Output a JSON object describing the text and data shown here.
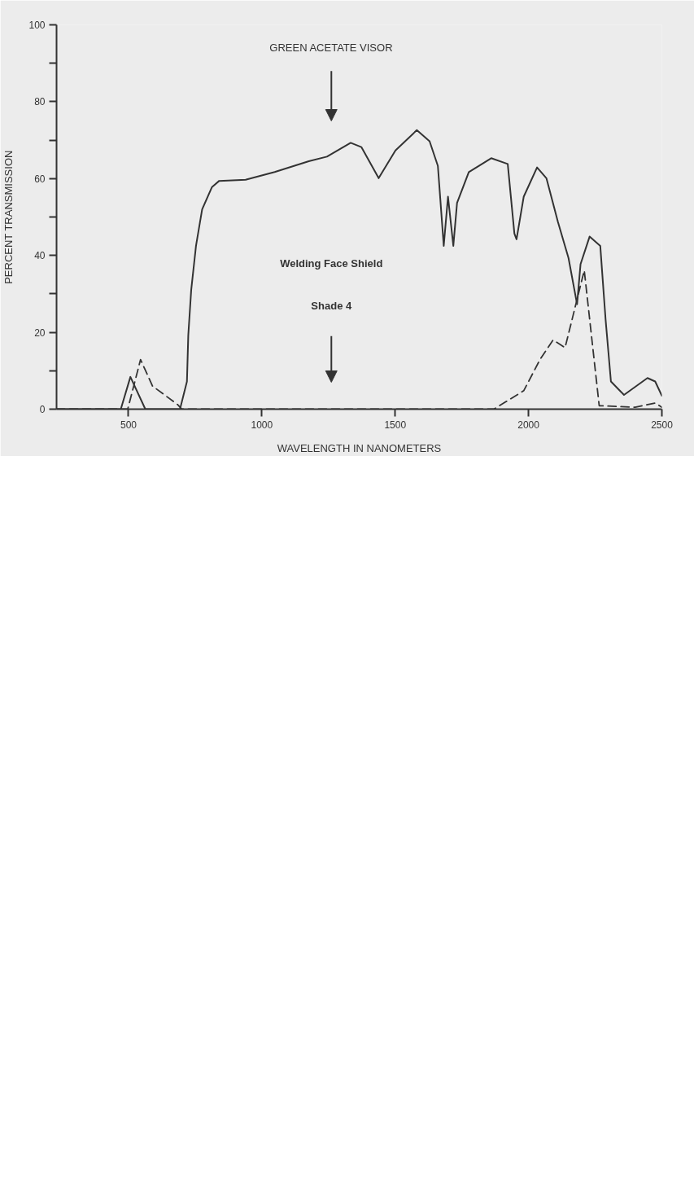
{
  "chart_data": {
    "type": "line",
    "xlabel": "WAVELENGTH IN NANOMETERS",
    "ylabel": "PERCENT TRANSMISSION",
    "xlim": [
      230,
      2500
    ],
    "xticks": [
      500,
      1000,
      1500,
      2000,
      2500
    ],
    "ylim": [
      0,
      100
    ],
    "yticks": [
      0,
      {
        "value": 10,
        "label": null
      },
      20,
      {
        "value": 30,
        "label": null
      },
      40,
      {
        "value": 50,
        "label": null
      },
      60,
      {
        "value": 70,
        "label": null
      },
      80,
      {
        "value": 90,
        "label": null
      },
      100
    ],
    "grid": false,
    "series": [
      {
        "color": "#333333",
        "line_style": "solid",
        "x": [
          230,
          471,
          507,
          563,
          693,
          719,
          724,
          735,
          753,
          776,
          813,
          840,
          939,
          1048,
          1176,
          1244,
          1333,
          1373,
          1438,
          1501,
          1581,
          1629,
          1660,
          1682,
          1698,
          1718,
          1732,
          1776,
          1860,
          1922,
          1947,
          1955,
          1982,
          2032,
          2067,
          2110,
          2150,
          2182,
          2195,
          2229,
          2269,
          2289,
          2309,
          2358,
          2446,
          2475,
          2500
        ],
        "values": [
          0,
          0,
          8.4,
          0,
          0,
          7.2,
          19.2,
          31,
          42.5,
          52,
          57.8,
          59.4,
          59.7,
          61.7,
          64.5,
          65.7,
          69.3,
          68.2,
          60.1,
          67.3,
          72.6,
          69.7,
          63.3,
          42.5,
          55.3,
          42.5,
          53.7,
          61.7,
          65.3,
          63.8,
          45.7,
          44.2,
          55.3,
          62.9,
          60.1,
          48.8,
          39.3,
          27.3,
          37.7,
          44.9,
          42.5,
          23.3,
          7.2,
          3.7,
          8.1,
          7.2,
          3.5
        ]
      },
      {
        "color": "#333333",
        "line_style": "dashed",
        "x": [
          230,
          470,
          497,
          545,
          590,
          684,
          700,
          1870,
          1982,
          2043,
          2092,
          2137,
          2209,
          2265,
          2400,
          2475,
          2500
        ],
        "values": [
          0,
          0,
          0,
          12.9,
          6.0,
          1.2,
          0,
          0,
          4.8,
          12.9,
          18.0,
          16.0,
          36.1,
          0.9,
          0.5,
          1.6,
          0.5
        ]
      }
    ],
    "annotations": [
      "GREEN ACETATE VISOR",
      "Welding Face Shield",
      "Shade 4"
    ]
  }
}
